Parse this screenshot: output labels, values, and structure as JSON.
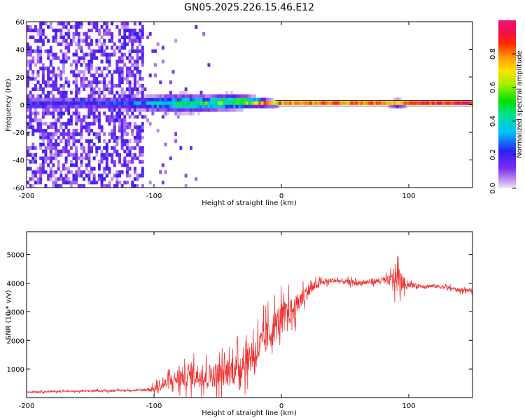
{
  "title": "GN05.2025.226.15.46.E12",
  "chart_data": [
    {
      "type": "heatmap",
      "title": "GN05.2025.226.15.46.E12",
      "xlabel": "Height of straight line (km)",
      "ylabel": "Frequency (Hz)",
      "xlim": [
        -200,
        150
      ],
      "ylim": [
        -60,
        60
      ],
      "x_ticks": [
        -200,
        -100,
        0,
        100
      ],
      "y_ticks": [
        -60,
        -40,
        -20,
        0,
        20,
        40,
        60
      ],
      "colorbar": {
        "label": "Normalized spectral amplitude",
        "ticks": [
          0.0,
          0.2,
          0.4,
          0.6,
          0.8
        ],
        "range": [
          0,
          1
        ],
        "colormap": "rainbow (purple-blue-cyan-green-yellow-orange-red-magenta)"
      },
      "ridge": [
        {
          "x": -150,
          "freq": 1,
          "width": 5,
          "amp": 0.22
        },
        {
          "x": -110,
          "freq": 1,
          "width": 6,
          "amp": 0.28
        },
        {
          "x": -100,
          "freq": 1,
          "width": 7,
          "amp": 0.38
        },
        {
          "x": -80,
          "freq": 1,
          "width": 8,
          "amp": 0.45
        },
        {
          "x": -60,
          "freq": 1,
          "width": 7,
          "amp": 0.48
        },
        {
          "x": -40,
          "freq": 2,
          "width": 7,
          "amp": 0.55
        },
        {
          "x": -25,
          "freq": 2,
          "width": 5,
          "amp": 0.65
        },
        {
          "x": -10,
          "freq": 1,
          "width": 3,
          "amp": 0.7
        },
        {
          "x": 0,
          "freq": 1,
          "width": 2,
          "amp": 0.8
        },
        {
          "x": 20,
          "freq": 1,
          "width": 2,
          "amp": 0.85
        },
        {
          "x": 50,
          "freq": 1,
          "width": 2,
          "amp": 0.85
        },
        {
          "x": 80,
          "freq": 1,
          "width": 2,
          "amp": 0.85
        },
        {
          "x": 90,
          "freq": 1,
          "width": 3,
          "amp": 0.75
        },
        {
          "x": 100,
          "freq": 1,
          "width": 2,
          "amp": 0.9
        },
        {
          "x": 150,
          "freq": 1,
          "width": 2,
          "amp": 0.95
        }
      ],
      "noise_region": {
        "x_from": -200,
        "x_to": -108,
        "level": 0.18
      }
    },
    {
      "type": "line",
      "xlabel": "Height of straight line (km)",
      "ylabel": "SNR (10 * v/v)",
      "xlim": [
        -200,
        150
      ],
      "ylim": [
        0,
        5800
      ],
      "x_ticks": [
        -200,
        -100,
        0,
        100
      ],
      "y_ticks": [
        1000,
        2000,
        3000,
        4000,
        5000
      ],
      "series": [
        {
          "color": "#ee3333",
          "x": [
            -200,
            -150,
            -110,
            -100,
            -90,
            -80,
            -70,
            -60,
            -50,
            -40,
            -30,
            -20,
            -10,
            0,
            10,
            20,
            30,
            40,
            50,
            60,
            70,
            80,
            85,
            90,
            95,
            100,
            110,
            120,
            130,
            140,
            150
          ],
          "y": [
            200,
            230,
            260,
            300,
            500,
            700,
            800,
            750,
            800,
            900,
            1200,
            1600,
            2200,
            2800,
            3100,
            3700,
            4000,
            4100,
            4050,
            4000,
            4050,
            4100,
            4100,
            4200,
            4000,
            3950,
            3900,
            3900,
            3850,
            3750,
            3750
          ],
          "spread": [
            60,
            60,
            60,
            250,
            500,
            800,
            900,
            900,
            1000,
            1100,
            1200,
            1300,
            1300,
            1200,
            900,
            600,
            250,
            200,
            200,
            200,
            200,
            250,
            400,
            1200,
            600,
            200,
            150,
            150,
            150,
            150,
            150
          ]
        }
      ]
    }
  ]
}
